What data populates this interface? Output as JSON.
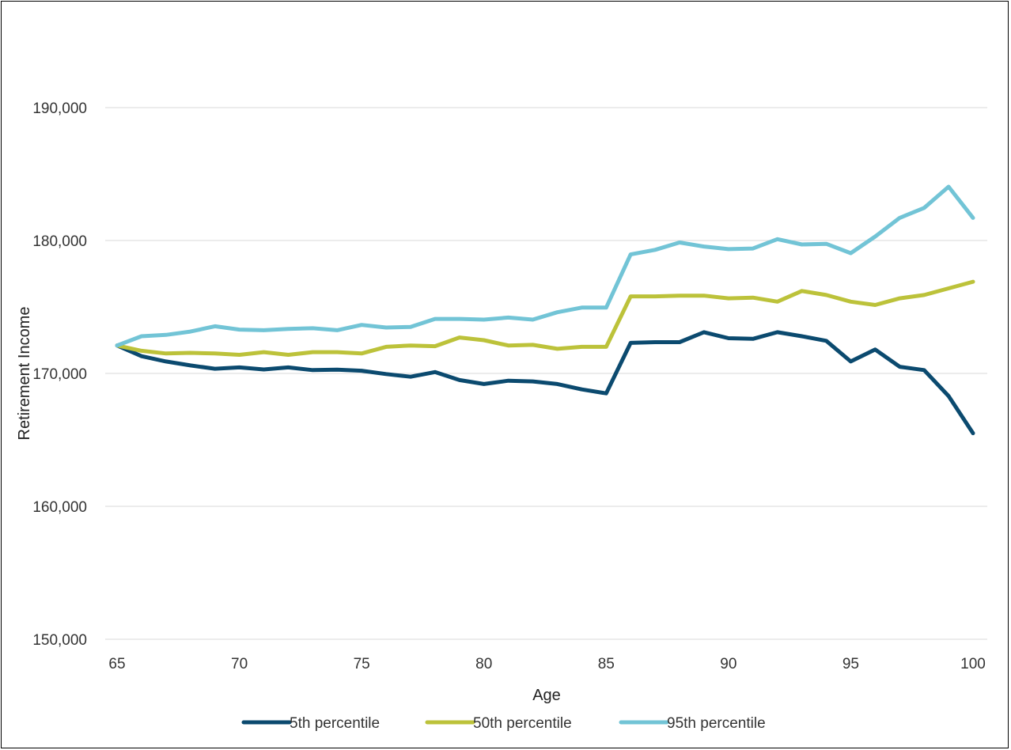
{
  "chart_data": {
    "type": "line",
    "xlabel": "Age",
    "ylabel": "Retirement Income",
    "xlim": [
      65,
      100
    ],
    "ylim": [
      150000,
      196000
    ],
    "x_ticks": [
      "65",
      "70",
      "75",
      "80",
      "85",
      "90",
      "95",
      "100"
    ],
    "y_ticks": [
      "150,000",
      "160,000",
      "170,000",
      "180,000",
      "190,000"
    ],
    "grid": true,
    "legend_position": "bottom",
    "x": [
      65,
      66,
      67,
      68,
      69,
      70,
      71,
      72,
      73,
      74,
      75,
      76,
      77,
      78,
      79,
      80,
      81,
      82,
      83,
      84,
      85,
      86,
      87,
      88,
      89,
      90,
      91,
      92,
      93,
      94,
      95,
      96,
      97,
      98,
      99,
      100
    ],
    "series": [
      {
        "name": "5th percentile",
        "color": "#0b4a6f",
        "values": [
          172100,
          171300,
          170900,
          170600,
          170350,
          170450,
          170300,
          170450,
          170250,
          170280,
          170200,
          169950,
          169750,
          170100,
          169500,
          169200,
          169450,
          169400,
          169200,
          168800,
          168500,
          172300,
          172350,
          172350,
          173100,
          172650,
          172600,
          173100,
          172800,
          172450,
          170900,
          171800,
          170500,
          170250,
          168300,
          165500
        ]
      },
      {
        "name": "50th percentile",
        "color": "#bcc23a",
        "values": [
          172100,
          171700,
          171500,
          171550,
          171500,
          171400,
          171600,
          171400,
          171600,
          171600,
          171500,
          172000,
          172100,
          172050,
          172700,
          172500,
          172100,
          172150,
          171850,
          172000,
          172000,
          175800,
          175800,
          175850,
          175850,
          175650,
          175700,
          175400,
          176200,
          175900,
          175400,
          175150,
          175650,
          175900,
          176400,
          176900
        ]
      },
      {
        "name": "95th percentile",
        "color": "#72c4d6",
        "values": [
          172100,
          172800,
          172900,
          173150,
          173550,
          173300,
          173250,
          173350,
          173400,
          173250,
          173650,
          173450,
          173500,
          174100,
          174100,
          174050,
          174200,
          174050,
          174600,
          174950,
          174950,
          178950,
          179300,
          179850,
          179550,
          179350,
          179400,
          180100,
          179700,
          179750,
          179050,
          180300,
          181700,
          182450,
          184050,
          181700
        ]
      }
    ]
  }
}
